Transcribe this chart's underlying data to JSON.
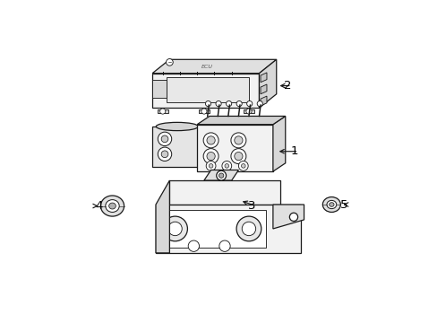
{
  "background_color": "#ffffff",
  "line_color": "#1a1a1a",
  "text_color": "#000000",
  "fig_width": 4.89,
  "fig_height": 3.6,
  "dpi": 100,
  "component_fill": "#f2f2f2",
  "white": "#ffffff",
  "gray_light": "#e8e8e8",
  "gray_mid": "#d0d0d0"
}
